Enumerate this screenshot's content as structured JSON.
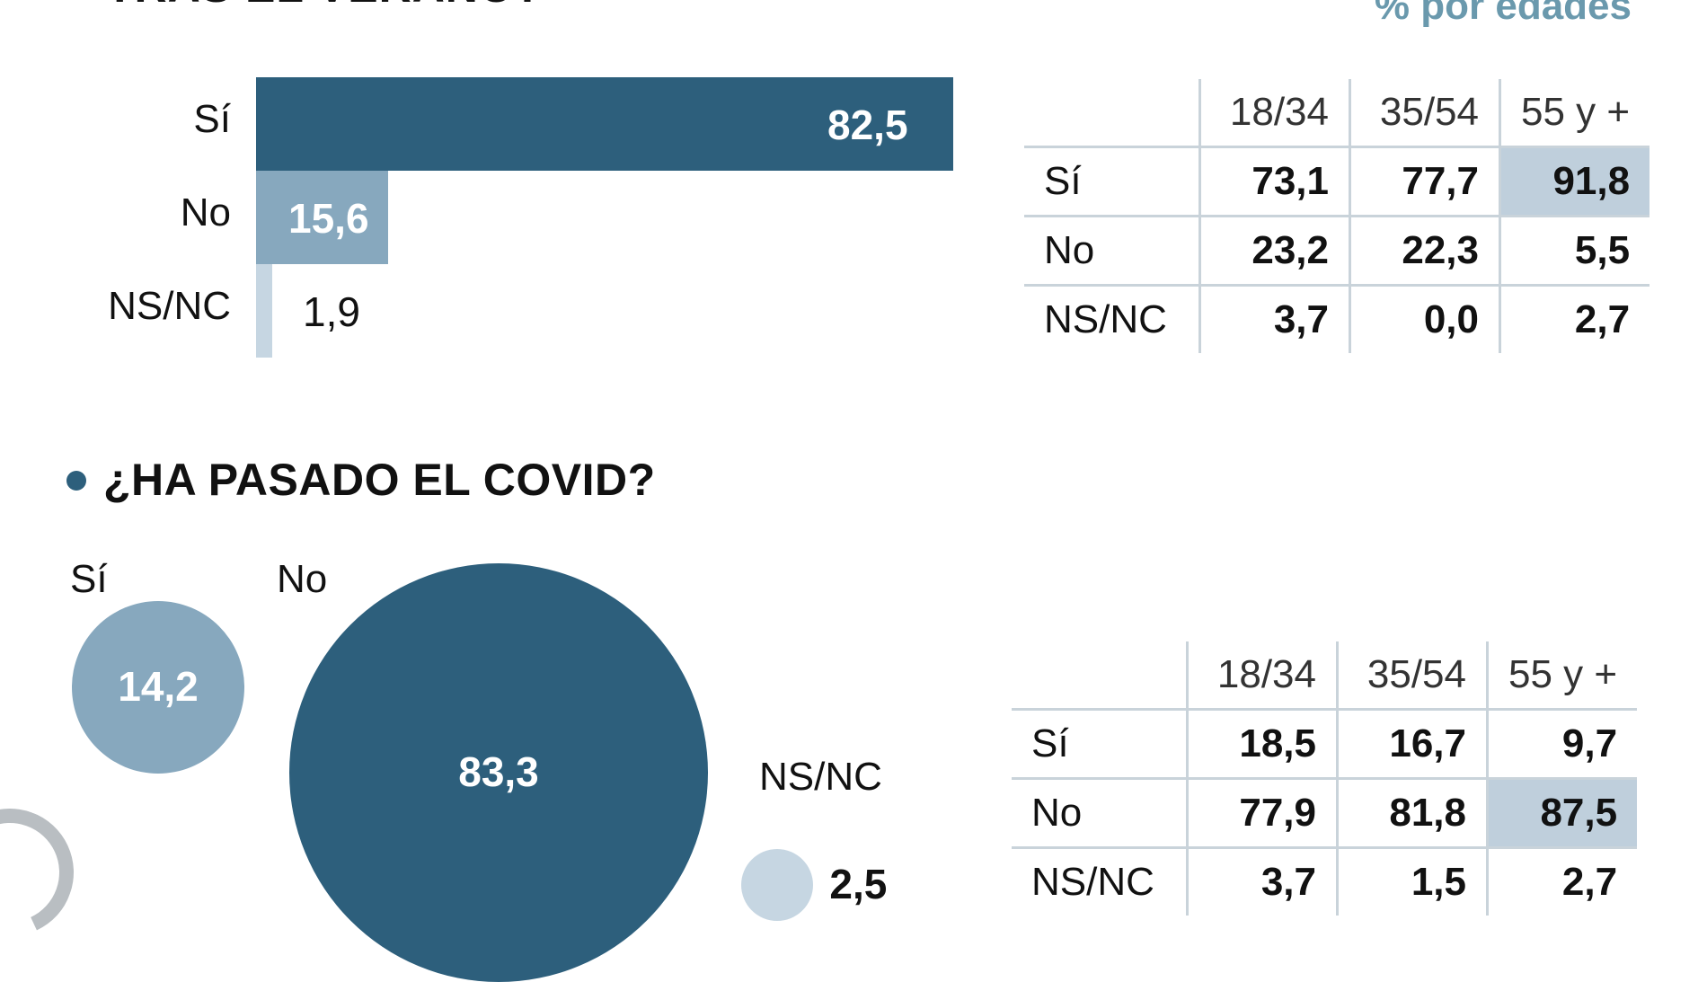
{
  "top_question_fragment": "TRAS EL VERANO?",
  "subtitle": "% por edades",
  "chart_data": [
    {
      "type": "bar",
      "orientation": "horizontal",
      "categories": [
        "Sí",
        "No",
        "NS/NC"
      ],
      "values": [
        82.5,
        15.6,
        1.9
      ],
      "value_labels": [
        "82,5",
        "15,6",
        "1,9"
      ],
      "colors": [
        "#2d5f7c",
        "#87a8be",
        "#c6d6e2"
      ],
      "xlim": [
        0,
        100
      ]
    },
    {
      "type": "table",
      "columns": [
        "18/34",
        "35/54",
        "55 y +"
      ],
      "rows": [
        {
          "label": "Sí",
          "values": [
            "73,1",
            "77,7",
            "91,8"
          ],
          "highlight": 2
        },
        {
          "label": "No",
          "values": [
            "23,2",
            "22,3",
            "5,5"
          ],
          "highlight": -1
        },
        {
          "label": "NS/NC",
          "values": [
            "3,7",
            "0,0",
            "2,7"
          ],
          "highlight": -1
        }
      ]
    },
    {
      "type": "bubble",
      "title": "¿HA PASADO EL COVID?",
      "categories": [
        "Sí",
        "No",
        "NS/NC"
      ],
      "values": [
        14.2,
        83.3,
        2.5
      ],
      "value_labels": [
        "14,2",
        "83,3",
        "2,5"
      ],
      "colors": [
        "#87a8be",
        "#2d5f7c",
        "#c6d6e2"
      ]
    },
    {
      "type": "table",
      "columns": [
        "18/34",
        "35/54",
        "55 y +"
      ],
      "rows": [
        {
          "label": "Sí",
          "values": [
            "18,5",
            "16,7",
            "9,7"
          ],
          "highlight": -1
        },
        {
          "label": "No",
          "values": [
            "77,9",
            "81,8",
            "87,5"
          ],
          "highlight": 2
        },
        {
          "label": "NS/NC",
          "values": [
            "3,7",
            "1,5",
            "2,7"
          ],
          "highlight": -1
        }
      ]
    }
  ]
}
